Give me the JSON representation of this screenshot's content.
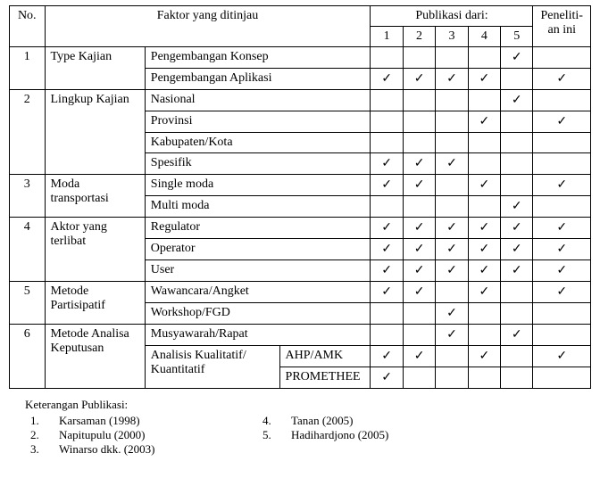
{
  "headers": {
    "no": "No.",
    "factor": "Faktor yang ditinjau",
    "pubFrom": "Publikasi dari:",
    "research": "Peneliti-an ini",
    "pubNums": [
      "1",
      "2",
      "3",
      "4",
      "5"
    ]
  },
  "check": "✓",
  "rows": [
    {
      "no": "1",
      "cat": "Type Kajian",
      "sub": "Pengembangan Konsep",
      "subAcross": true,
      "p": [
        "",
        "",
        "",
        "",
        "✓"
      ],
      "r": ""
    },
    {
      "sub": "Pengembangan Aplikasi",
      "subAcross": true,
      "p": [
        "✓",
        "✓",
        "✓",
        "✓",
        ""
      ],
      "r": "✓"
    },
    {
      "no": "2",
      "cat": "Lingkup Kajian",
      "sub": "Nasional",
      "subAcross": true,
      "p": [
        "",
        "",
        "",
        "",
        "✓"
      ],
      "r": ""
    },
    {
      "sub": "Provinsi",
      "subAcross": true,
      "p": [
        "",
        "",
        "",
        "✓",
        ""
      ],
      "r": "✓"
    },
    {
      "sub": "Kabupaten/Kota",
      "subAcross": true,
      "p": [
        "",
        "",
        "",
        "",
        ""
      ],
      "r": ""
    },
    {
      "sub": "Spesifik",
      "subAcross": true,
      "p": [
        "✓",
        "✓",
        "✓",
        "",
        ""
      ],
      "r": ""
    },
    {
      "no": "3",
      "cat": "Moda transportasi",
      "sub": "Single moda",
      "subAcross": true,
      "p": [
        "✓",
        "✓",
        "",
        "✓",
        ""
      ],
      "r": "✓"
    },
    {
      "sub": "Multi moda",
      "subAcross": true,
      "p": [
        "",
        "",
        "",
        "",
        "✓"
      ],
      "r": ""
    },
    {
      "no": "4",
      "cat": "Aktor yang terlibat",
      "sub": "Regulator",
      "subAcross": true,
      "p": [
        "✓",
        "✓",
        "✓",
        "✓",
        "✓"
      ],
      "r": "✓"
    },
    {
      "sub": "Operator",
      "subAcross": true,
      "p": [
        "✓",
        "✓",
        "✓",
        "✓",
        "✓"
      ],
      "r": "✓"
    },
    {
      "sub": "User",
      "subAcross": true,
      "p": [
        "✓",
        "✓",
        "✓",
        "✓",
        "✓"
      ],
      "r": "✓"
    },
    {
      "no": "5",
      "cat": "Metode Partisipatif",
      "sub": "Wawancara/Angket",
      "subAcross": true,
      "p": [
        "✓",
        "✓",
        "",
        "✓",
        ""
      ],
      "r": "✓"
    },
    {
      "sub": "Workshop/FGD",
      "subAcross": true,
      "p": [
        "",
        "",
        "✓",
        "",
        ""
      ],
      "r": ""
    },
    {
      "no": "6",
      "cat": "Metode Analisa Keputusan",
      "sub": "Musyawarah/Rapat",
      "subAcross": true,
      "p": [
        "",
        "",
        "✓",
        "",
        "✓"
      ],
      "r": ""
    },
    {
      "sub": "Analisis Kualitatif/ Kuantitatif",
      "subsub": "AHP/AMK",
      "p": [
        "✓",
        "✓",
        "",
        "✓",
        ""
      ],
      "r": "✓"
    },
    {
      "subsub": "PROMETHEE",
      "p": [
        "✓",
        "",
        "",
        "",
        ""
      ],
      "r": ""
    }
  ],
  "footer": {
    "title": "Keterangan Publikasi:",
    "left": [
      {
        "n": "1.",
        "t": "Karsaman (1998)"
      },
      {
        "n": "2.",
        "t": "Napitupulu (2000)"
      },
      {
        "n": "3.",
        "t": "Winarso dkk. (2003)"
      }
    ],
    "right": [
      {
        "n": "4.",
        "t": "Tanan (2005)"
      },
      {
        "n": "5.",
        "t": "Hadihardjono (2005)"
      }
    ]
  }
}
